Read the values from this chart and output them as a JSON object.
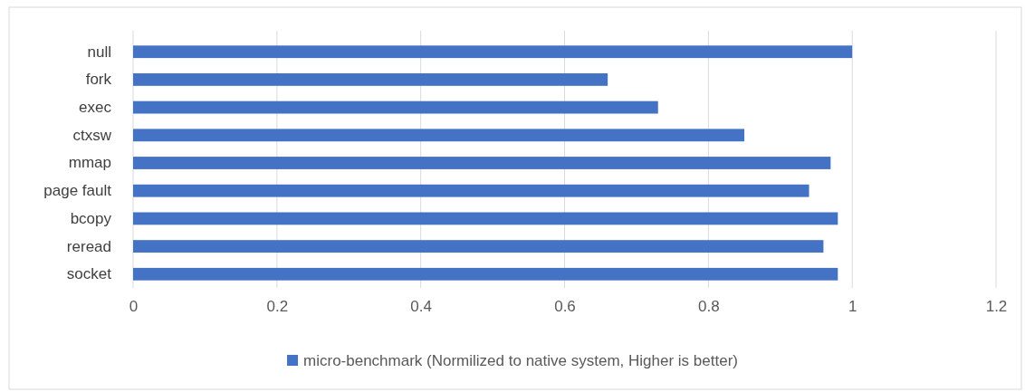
{
  "chart_data": {
    "type": "bar",
    "orientation": "horizontal",
    "categories": [
      "null",
      "fork",
      "exec",
      "ctxsw",
      "mmap",
      "page fault",
      "bcopy",
      "reread",
      "socket"
    ],
    "series": [
      {
        "name": "micro-benchmark (Normilized to native system, Higher is better)",
        "color": "#4472c4",
        "values": [
          1,
          0.66,
          0.73,
          0.85,
          0.97,
          0.94,
          0.98,
          0.96,
          0.98
        ]
      }
    ],
    "xlim": [
      0,
      1.2
    ],
    "xticks": [
      0,
      0.2,
      0.4,
      0.6,
      0.8,
      1,
      1.2
    ],
    "grid": "x",
    "legend": "bottom"
  }
}
